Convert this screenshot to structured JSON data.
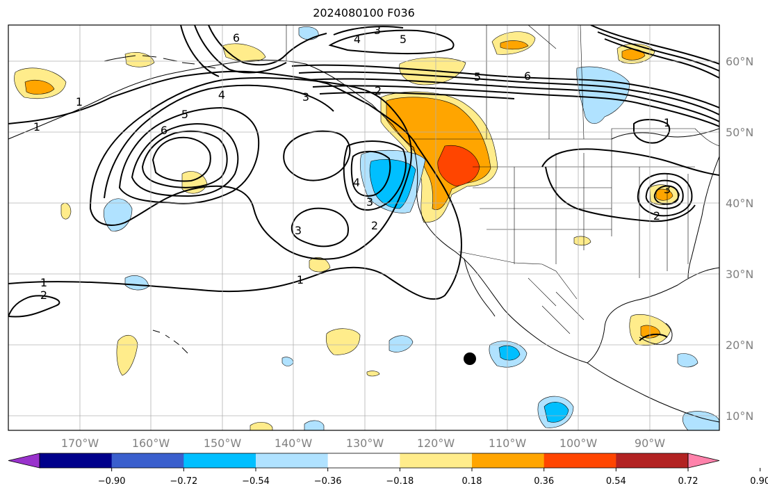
{
  "title": "2024080100 F036",
  "lon_labels": [
    "170°W",
    "160°W",
    "150°W",
    "140°W",
    "130°W",
    "120°W",
    "110°W",
    "100°W",
    "90°W"
  ],
  "lat_labels": [
    "60°N",
    "50°N",
    "40°N",
    "30°N",
    "20°N",
    "10°N"
  ],
  "colorbar": {
    "colors": [
      "#9932cc",
      "#00008b",
      "#3a5fcd",
      "#00bfff",
      "#b0e2ff",
      "#ffffff",
      "#ffec8b",
      "#ffa500",
      "#ff4500",
      "#b22222",
      "#ff82ab"
    ],
    "ticks": [
      "−0.90",
      "−0.72",
      "−0.54",
      "−0.36",
      "−0.18",
      "0.18",
      "0.36",
      "0.54",
      "0.72",
      "0.90"
    ]
  },
  "contour_labels": [
    {
      "text": "6"
    },
    {
      "text": "3"
    },
    {
      "text": "4"
    },
    {
      "text": "5"
    },
    {
      "text": "5"
    },
    {
      "text": "6"
    },
    {
      "text": "3"
    },
    {
      "text": "2"
    },
    {
      "text": "4"
    },
    {
      "text": "5"
    },
    {
      "text": "6"
    },
    {
      "text": "1"
    },
    {
      "text": "1"
    },
    {
      "text": "4"
    },
    {
      "text": "3"
    },
    {
      "text": "2"
    },
    {
      "text": "3"
    },
    {
      "text": "1"
    },
    {
      "text": "1"
    },
    {
      "text": "2"
    },
    {
      "text": "1"
    },
    {
      "text": "3"
    },
    {
      "text": "2"
    }
  ]
}
